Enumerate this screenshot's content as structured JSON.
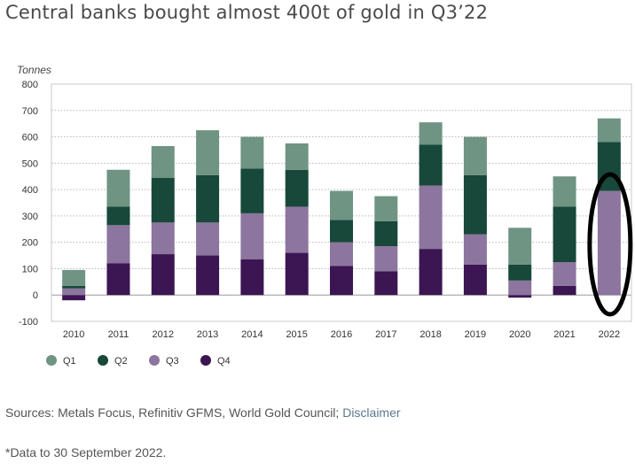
{
  "title": "Central banks bought almost 400t of gold in Q3’22",
  "source_prefix": "Sources: Metals Focus, Refinitiv GFMS, World Gold Council; ",
  "source_link": "Disclaimer",
  "footnote": "*Data to 30 September 2022.",
  "colors": {
    "Q1": "#6f9484",
    "Q2": "#17483a",
    "Q3": "#8c759e",
    "Q4": "#3c1553",
    "highlight": "#000000"
  },
  "chart_data": {
    "type": "bar",
    "stacked": true,
    "ylabel": "Tonnes",
    "ylim": [
      -100,
      800
    ],
    "yticks": [
      -100,
      0,
      100,
      200,
      300,
      400,
      500,
      600,
      700,
      800
    ],
    "grid": true,
    "legend_position": "bottom-left",
    "categories": [
      "2010",
      "2011",
      "2012",
      "2013",
      "2014",
      "2015",
      "2016",
      "2017",
      "2018",
      "2019",
      "2020",
      "2021",
      "2022"
    ],
    "series": [
      {
        "name": "Q1",
        "values": [
          60,
          140,
          120,
          170,
          120,
          100,
          110,
          95,
          85,
          145,
          140,
          115,
          90
        ]
      },
      {
        "name": "Q2",
        "values": [
          10,
          70,
          170,
          180,
          170,
          140,
          85,
          95,
          155,
          225,
          60,
          210,
          185
        ]
      },
      {
        "name": "Q3",
        "values": [
          25,
          145,
          120,
          125,
          175,
          175,
          90,
          95,
          240,
          115,
          55,
          90,
          395
        ]
      },
      {
        "name": "Q4",
        "values": [
          -20,
          120,
          155,
          150,
          135,
          160,
          110,
          90,
          175,
          115,
          -10,
          35,
          0
        ]
      }
    ],
    "highlighted_category": "2022"
  }
}
